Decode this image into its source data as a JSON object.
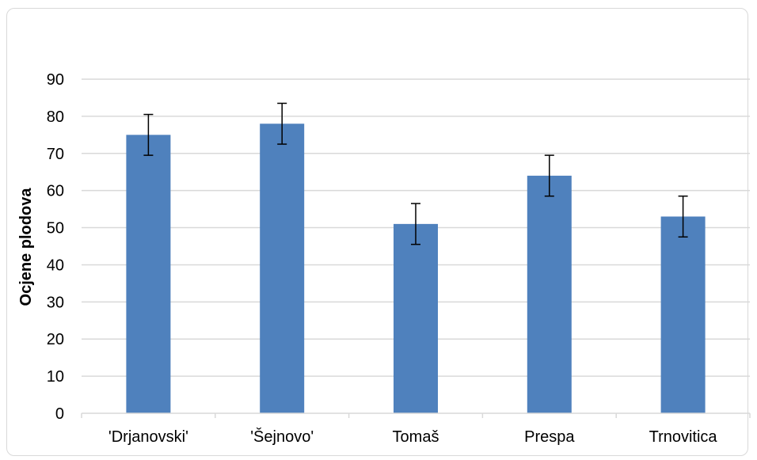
{
  "chart_data": {
    "type": "bar",
    "title": "",
    "xlabel": "",
    "ylabel": "Ocjene plodova",
    "categories": [
      "'Drjanovski'",
      "'Šejnovo'",
      "Tomaš",
      "Prespa",
      "Trnovitica"
    ],
    "values": [
      75,
      78,
      51,
      64,
      53
    ],
    "error_low": [
      69.5,
      72.5,
      45.5,
      58.5,
      47.5
    ],
    "error_high": [
      80.5,
      83.5,
      56.5,
      69.5,
      58.5
    ],
    "ylim": [
      0,
      90
    ],
    "yticks": [
      0,
      10,
      20,
      30,
      40,
      50,
      60,
      70,
      80,
      90
    ],
    "grid": true,
    "legend": "none",
    "colors": {
      "bar": "#4f81bd",
      "grid": "#d9d9d9",
      "error": "#000000"
    }
  }
}
